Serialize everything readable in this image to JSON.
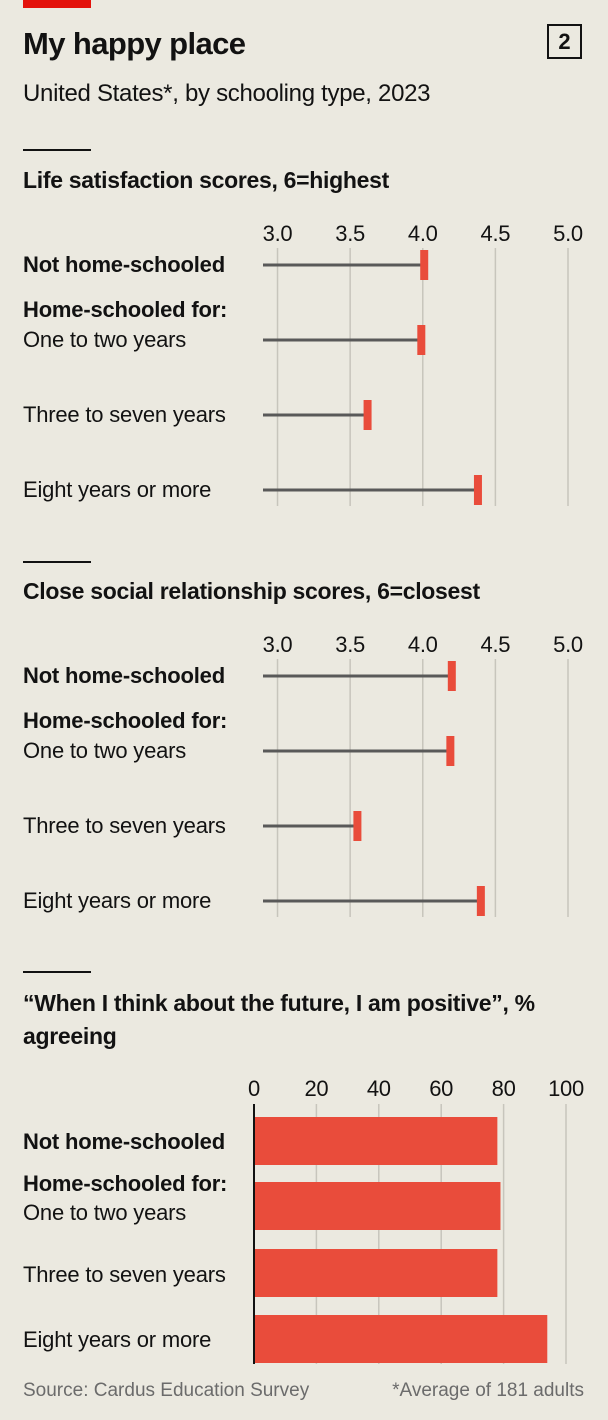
{
  "header": {
    "title": "My happy place",
    "subtitle": "United States*, by schooling type, 2023",
    "badge": "2"
  },
  "labels": {
    "not_home": "Not home-schooled",
    "home_for": "Home-schooled for:",
    "one_two": "One to two years",
    "three_seven": "Three to seven years",
    "eight_more": "Eight years or more"
  },
  "footer": {
    "source": "Source: Cardus Education Survey",
    "note": "*Average of 181 adults"
  },
  "colors": {
    "accent": "#e94c3b",
    "brand": "#e3120b",
    "stem": "#595959",
    "grid": "#c7c5bc"
  },
  "chart_data": [
    {
      "type": "dot",
      "title": "Life satisfaction scores, 6=highest",
      "categories": [
        "Not home-schooled",
        "One to two years",
        "Three to seven years",
        "Eight years or more"
      ],
      "values": [
        4.01,
        3.99,
        3.62,
        4.38
      ],
      "xlim": [
        2.9,
        5.0
      ],
      "ticks": [
        "3.0",
        "3.5",
        "4.0",
        "4.5",
        "5.0"
      ],
      "grid": true
    },
    {
      "type": "dot",
      "title": "Close social relationship scores, 6=closest",
      "categories": [
        "Not home-schooled",
        "One to two years",
        "Three to seven years",
        "Eight years or more"
      ],
      "values": [
        4.2,
        4.19,
        3.55,
        4.4
      ],
      "xlim": [
        2.9,
        5.0
      ],
      "ticks": [
        "3.0",
        "3.5",
        "4.0",
        "4.5",
        "5.0"
      ],
      "grid": true
    },
    {
      "type": "bar",
      "title": "“When I think about the future, I am positive”, % agreeing",
      "categories": [
        "Not home-schooled",
        "One to two years",
        "Three to seven years",
        "Eight years or more"
      ],
      "values": [
        78,
        79,
        78,
        94
      ],
      "xlim": [
        0,
        100
      ],
      "ticks": [
        "0",
        "20",
        "40",
        "60",
        "80",
        "100"
      ],
      "grid": true
    }
  ]
}
